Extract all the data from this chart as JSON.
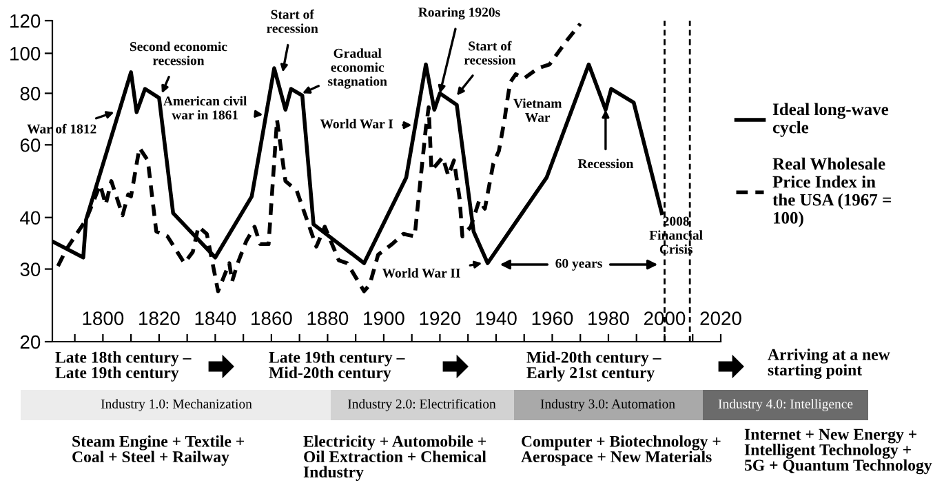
{
  "chart_data": {
    "type": "line",
    "series": [
      {
        "name": "Ideal long-wave cycle",
        "color": "#000000",
        "line_style": "solid",
        "x": [
          1782,
          1793,
          1794,
          1810,
          1812,
          1815,
          1820,
          1825,
          1840,
          1853,
          1861,
          1865,
          1867,
          1871,
          1875,
          1893,
          1908,
          1915,
          1918,
          1920,
          1926,
          1932,
          1937,
          1958,
          1973,
          1979,
          1981,
          1989,
          1999
        ],
        "values": [
          35,
          32,
          39.5,
          90,
          72,
          82,
          78,
          41,
          32,
          45,
          92,
          73,
          82,
          79,
          38.5,
          31,
          50,
          94,
          73,
          80,
          75,
          37,
          31,
          50,
          94,
          73,
          82,
          76,
          41
        ]
      },
      {
        "name": "Real Wholesale Price Index in the USA (1967 = 100)",
        "color": "#000000",
        "line_style": "dashed",
        "x": [
          1784,
          1787,
          1794,
          1799,
          1801,
          1803,
          1807,
          1809,
          1810,
          1813,
          1816,
          1819,
          1823,
          1829,
          1832,
          1834,
          1837,
          1841,
          1845,
          1846,
          1848,
          1851,
          1854,
          1856,
          1859,
          1862,
          1865,
          1869,
          1876,
          1879,
          1884,
          1887,
          1893,
          1895,
          1898,
          1903,
          1907,
          1911,
          1915,
          1916,
          1917,
          1921,
          1923,
          1925,
          1927,
          1928,
          1931,
          1934,
          1936,
          1939,
          1941,
          1943,
          1944,
          1945,
          1947,
          1950,
          1955,
          1959,
          1965,
          1970
        ],
        "values": [
          30.5,
          33.5,
          39.5,
          48,
          43,
          49,
          40.5,
          45.5,
          45,
          59,
          55,
          37,
          36,
          31,
          33,
          38,
          36.5,
          26.5,
          31,
          28,
          31,
          35,
          38,
          34.5,
          34.5,
          69,
          49,
          46.5,
          34,
          38,
          31.5,
          31,
          26.5,
          27.5,
          32.5,
          34.5,
          36.5,
          36,
          66,
          74,
          52,
          56,
          50.5,
          55,
          44.5,
          36,
          38,
          44,
          42,
          54,
          58,
          69,
          77,
          85,
          89,
          87,
          92,
          94,
          107,
          118
        ]
      }
    ],
    "xlim": [
      1782,
      2020
    ],
    "xticks": [
      {
        "value": 1790,
        "label": null
      },
      1800,
      {
        "value": 1810,
        "label": null
      },
      1820,
      {
        "value": 1830,
        "label": null
      },
      1840,
      {
        "value": 1850,
        "label": null
      },
      1860,
      {
        "value": 1870,
        "label": null
      },
      1880,
      {
        "value": 1890,
        "label": null
      },
      1900,
      {
        "value": 1910,
        "label": null
      },
      1920,
      {
        "value": 1930,
        "label": null
      },
      1940,
      {
        "value": 1950,
        "label": null
      },
      1960,
      {
        "value": 1970,
        "label": null
      },
      1980,
      {
        "value": 1990,
        "label": null
      },
      2000,
      {
        "value": 2010,
        "label": null
      },
      2020
    ],
    "ylim": [
      20,
      120
    ],
    "yticks": [
      20,
      30,
      40,
      60,
      80,
      100,
      120
    ],
    "log": "y",
    "grid": false,
    "legend": "right",
    "ref_lines": [
      {
        "axis": "x",
        "value": 2000,
        "line_style": "dashed",
        "color": "#000000"
      },
      {
        "axis": "x",
        "value": 2009,
        "line_style": "dashed",
        "color": "#000000"
      }
    ],
    "annotations": [
      {
        "text": "War of 1812",
        "x": 1804,
        "y": 72
      },
      {
        "text": "Second economic recession",
        "x": 1821,
        "y": 80
      },
      {
        "text": "American civil war in 1861",
        "x": 1857,
        "y": 71
      },
      {
        "text": "Start of recession",
        "x": 1864,
        "y": 90
      },
      {
        "text": "Gradual economic stagnation",
        "x": 1871,
        "y": 80
      },
      {
        "text": "World War I",
        "x": 1910,
        "y": 67
      },
      {
        "text": "Roaring 1920s",
        "x": 1920,
        "y": 80
      },
      {
        "text": "Start of recession",
        "x": 1926,
        "y": 79
      },
      {
        "text": "World War II",
        "x": 1935,
        "y": 31
      },
      {
        "text": "Vietnam War",
        "x": 1943,
        "y": 69
      },
      {
        "text": "Recession",
        "x": 1979,
        "y": 73
      },
      {
        "text": "2008 Financial Crisis",
        "x": 2009,
        "y": 36
      },
      "60 years",
      "Late 18th century – Late 19th century",
      "Late 19th century – Mid-20th century",
      "Mid-20th century – Early 21st century",
      "Arriving at a new starting point",
      "Industry 1.0: Mechanization",
      "Industry 2.0: Electrification",
      "Industry 3.0: Automation",
      "Industry 4.0: Intelligence",
      "Steam Engine + Textile + Coal + Steel + Railway",
      "Electricity + Automobile + Oil Extraction + Chemical Industry",
      "Computer + Biotechnology + Aerospace + New Materials",
      "Internet + New Energy + Intelligent Technology + 5G + Quantum Technology"
    ]
  }
}
